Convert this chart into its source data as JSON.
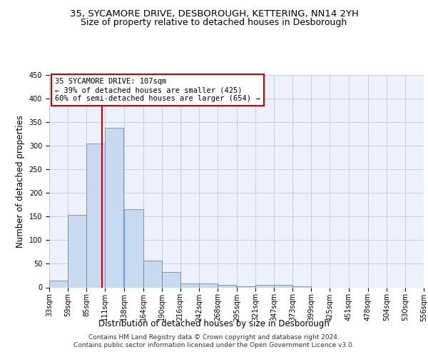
{
  "title1": "35, SYCAMORE DRIVE, DESBOROUGH, KETTERING, NN14 2YH",
  "title2": "Size of property relative to detached houses in Desborough",
  "xlabel": "Distribution of detached houses by size in Desborough",
  "ylabel": "Number of detached properties",
  "bin_edges": [
    33,
    59,
    85,
    111,
    138,
    164,
    190,
    216,
    242,
    268,
    295,
    321,
    347,
    373,
    399,
    425,
    451,
    478,
    504,
    530,
    556
  ],
  "bar_heights": [
    15,
    153,
    305,
    338,
    165,
    57,
    33,
    9,
    8,
    6,
    3,
    5,
    5,
    2,
    0,
    0,
    0,
    0,
    0,
    0,
    4
  ],
  "bar_color": "#c8d9f0",
  "bar_edge_color": "#5a8fc4",
  "property_size": 107,
  "red_line_color": "#cc0000",
  "annotation_line1": "35 SYCAMORE DRIVE: 107sqm",
  "annotation_line2": "← 39% of detached houses are smaller (425)",
  "annotation_line3": "60% of semi-detached houses are larger (654) →",
  "annotation_box_facecolor": "white",
  "annotation_box_edgecolor": "#cc0000",
  "ylim": [
    0,
    450
  ],
  "yticks": [
    0,
    50,
    100,
    150,
    200,
    250,
    300,
    350,
    400,
    450
  ],
  "grid_color": "#c8cce0",
  "bg_color": "#edf1fb",
  "footer1": "Contains HM Land Registry data © Crown copyright and database right 2024.",
  "footer2": "Contains public sector information licensed under the Open Government Licence v3.0.",
  "title1_fontsize": 9.5,
  "title2_fontsize": 9.0,
  "ylabel_fontsize": 8.5,
  "xlabel_fontsize": 8.5,
  "tick_fontsize": 7.0,
  "ann_fontsize": 7.5,
  "footer_fontsize": 6.5
}
